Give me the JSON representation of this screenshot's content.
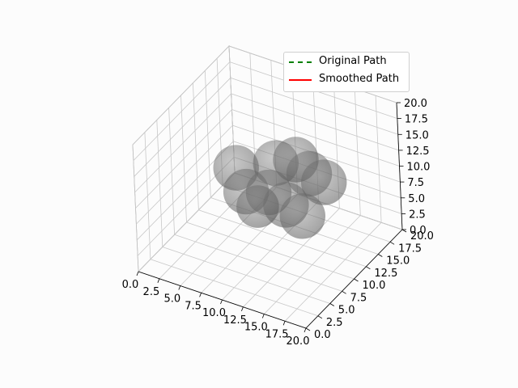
{
  "chart_data": {
    "type": "3d-scatter-spheres",
    "title": "",
    "xlabel": "",
    "ylabel": "",
    "zlabel": "",
    "xlim": [
      0,
      20
    ],
    "ylim": [
      0,
      20
    ],
    "zlim": [
      0,
      20
    ],
    "xticks": [
      "0.0",
      "2.5",
      "5.0",
      "7.5",
      "10.0",
      "12.5",
      "15.0",
      "17.5",
      "20.0"
    ],
    "yticks": [
      "0.0",
      "2.5",
      "5.0",
      "7.5",
      "10.0",
      "12.5",
      "15.0",
      "17.5",
      "20.0"
    ],
    "zticks": [
      "0.0",
      "2.5",
      "5.0",
      "7.5",
      "10.0",
      "12.5",
      "15.0",
      "17.5",
      "20.0"
    ],
    "grid": true,
    "legend": {
      "position": "upper-right",
      "entries": [
        {
          "label": "Original Path",
          "color": "#008000",
          "style": "dashed"
        },
        {
          "label": "Smoothed Path",
          "color": "#ff0000",
          "style": "solid"
        }
      ]
    },
    "obstacles": {
      "color": "#808080",
      "alpha": 0.55,
      "spheres": [
        {
          "x": 5.2,
          "y": 11.8,
          "z": 9.5,
          "r": 3.0
        },
        {
          "x": 7.2,
          "y": 10.3,
          "z": 7.8,
          "r": 3.0
        },
        {
          "x": 9.8,
          "y": 12.2,
          "z": 12.0,
          "r": 3.0
        },
        {
          "x": 12.0,
          "y": 12.6,
          "z": 13.2,
          "r": 3.0
        },
        {
          "x": 12.8,
          "y": 13.8,
          "z": 10.4,
          "r": 3.0
        },
        {
          "x": 14.3,
          "y": 14.2,
          "z": 9.4,
          "r": 3.0
        },
        {
          "x": 10.0,
          "y": 10.2,
          "z": 9.0,
          "r": 3.0
        },
        {
          "x": 11.3,
          "y": 11.4,
          "z": 6.7,
          "r": 3.0
        },
        {
          "x": 13.3,
          "y": 11.3,
          "z": 5.9,
          "r": 3.0
        },
        {
          "x": 9.2,
          "y": 9.2,
          "z": 7.2,
          "r": 2.8
        }
      ]
    }
  }
}
